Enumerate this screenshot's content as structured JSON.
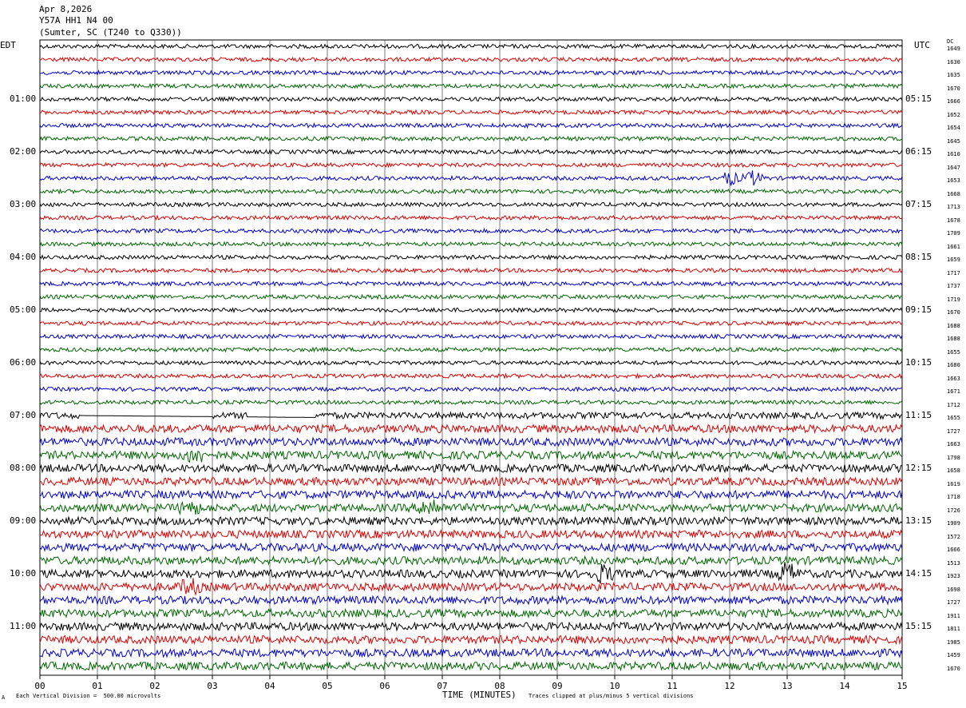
{
  "header": {
    "line1": "Apr 8,2026",
    "line2": "Y57A HH1 N4 00",
    "line3": "(Sumter, SC (T240 to Q330))"
  },
  "left_axis_label": "EDT",
  "right_axis_label": "UTC",
  "dc_label": "DC",
  "x_axis_title": "TIME (MINUTES)",
  "footer_left": "Each Vertical Division =  500.00 microvolts",
  "footer_right": "Traces clipped at plus/minus 5 vertical divisions",
  "footer_mark": "A",
  "chart_data": {
    "type": "line",
    "title": "Apr 8,2026 Y57A HH1 N4 00 (Sumter, SC (T240 to Q330))",
    "xlabel": "TIME (MINUTES)",
    "xlim": [
      0,
      15
    ],
    "x_ticks": [
      "00",
      "01",
      "02",
      "03",
      "04",
      "05",
      "06",
      "07",
      "08",
      "09",
      "10",
      "11",
      "12",
      "13",
      "14",
      "15"
    ],
    "grid": true,
    "trace_colors": [
      "#000000",
      "#dd0000",
      "#0000cc",
      "#006600"
    ],
    "left_time_labels": [
      {
        "row": 4,
        "text": "01:00"
      },
      {
        "row": 8,
        "text": "02:00"
      },
      {
        "row": 12,
        "text": "03:00"
      },
      {
        "row": 16,
        "text": "04:00"
      },
      {
        "row": 20,
        "text": "05:00"
      },
      {
        "row": 24,
        "text": "06:00"
      },
      {
        "row": 28,
        "text": "07:00"
      },
      {
        "row": 32,
        "text": "08:00"
      },
      {
        "row": 36,
        "text": "09:00"
      },
      {
        "row": 40,
        "text": "10:00"
      },
      {
        "row": 44,
        "text": "11:00"
      }
    ],
    "right_time_labels": [
      {
        "row": 4,
        "text": "05:15"
      },
      {
        "row": 8,
        "text": "06:15"
      },
      {
        "row": 12,
        "text": "07:15"
      },
      {
        "row": 16,
        "text": "08:15"
      },
      {
        "row": 20,
        "text": "09:15"
      },
      {
        "row": 24,
        "text": "10:15"
      },
      {
        "row": 28,
        "text": "11:15"
      },
      {
        "row": 32,
        "text": "12:15"
      },
      {
        "row": 36,
        "text": "13:15"
      },
      {
        "row": 40,
        "text": "14:15"
      },
      {
        "row": 44,
        "text": "15:15"
      }
    ],
    "dc_offsets": [
      "1649",
      "1630",
      "1635",
      "1670",
      "1666",
      "1652",
      "1654",
      "1645",
      "1610",
      "1647",
      "1653",
      "1668",
      "1713",
      "1678",
      "1709",
      "1661",
      "1659",
      "1717",
      "1737",
      "1719",
      "1670",
      "1688",
      "1688",
      "1655",
      "1680",
      "1663",
      "1671",
      "1712",
      "1655",
      "1727",
      "1663",
      "1798",
      "1658",
      "1619",
      "1718",
      "1726",
      "1909",
      "1572",
      "1666",
      "1513",
      "1923",
      "1698",
      "1727",
      "1911",
      "1811",
      "1985",
      "1459",
      "1670"
    ],
    "trace_amplitude": [
      2.5,
      2.5,
      2.5,
      2.5,
      2.5,
      2.5,
      2.5,
      2.5,
      2.5,
      2.5,
      2.5,
      2.5,
      2.5,
      2.5,
      2.5,
      2.5,
      2.5,
      2.5,
      2.5,
      2.5,
      2.5,
      2.5,
      2.5,
      2.5,
      2.5,
      2.5,
      2.5,
      2.5,
      4,
      5,
      5,
      5,
      5,
      5,
      5,
      5,
      5,
      5,
      5,
      5,
      5,
      5,
      5,
      5,
      5,
      5,
      5,
      5
    ],
    "events": [
      {
        "row": 10,
        "minute": 12.0,
        "amp": 8
      },
      {
        "row": 10,
        "minute": 12.4,
        "amp": 8
      },
      {
        "row": 31,
        "minute": 2.7,
        "amp": 9
      },
      {
        "row": 35,
        "minute": 2.6,
        "amp": 8
      },
      {
        "row": 35,
        "minute": 6.8,
        "amp": 12
      },
      {
        "row": 40,
        "minute": 9.8,
        "amp": 10
      },
      {
        "row": 40,
        "minute": 13.0,
        "amp": 12
      },
      {
        "row": 41,
        "minute": 2.6,
        "amp": 9
      }
    ],
    "gaps": [
      {
        "row": 28,
        "from": 0.7,
        "to": 3.0
      },
      {
        "row": 28,
        "from": 3.6,
        "to": 4.8
      }
    ]
  }
}
